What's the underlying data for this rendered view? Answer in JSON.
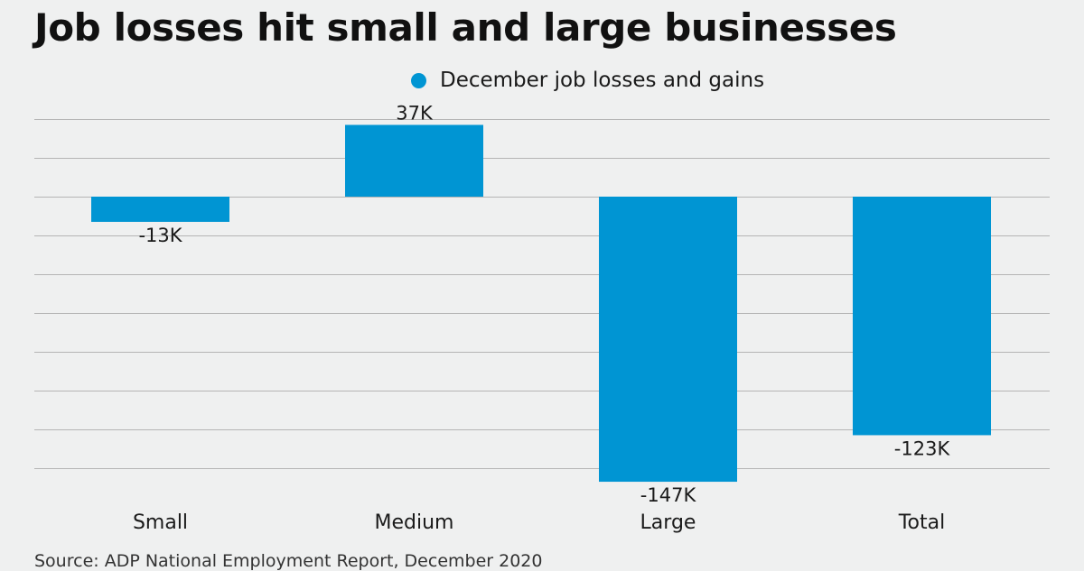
{
  "header": {
    "title": "Job losses hit small and large businesses"
  },
  "legend": {
    "label": "December job losses and gains",
    "color": "#0095d3"
  },
  "chart_data": {
    "type": "bar",
    "categories": [
      "Small",
      "Medium",
      "Large",
      "Total"
    ],
    "series": [
      {
        "name": "December job losses and gains",
        "values": [
          -13,
          37,
          -147,
          -123
        ]
      }
    ],
    "data_labels": [
      "-13K",
      "37K",
      "-147K",
      "-123K"
    ],
    "unit": "K",
    "ylim": [
      -140,
      40
    ],
    "grid": true,
    "legend_position": "top-center",
    "xlabel": "",
    "ylabel": "",
    "colors": {
      "bar": "#0095d3",
      "grid": "#b5b5b5",
      "background": "#eff0f0"
    }
  },
  "footer": {
    "source": "Source: ADP National Employment Report, December 2020"
  }
}
